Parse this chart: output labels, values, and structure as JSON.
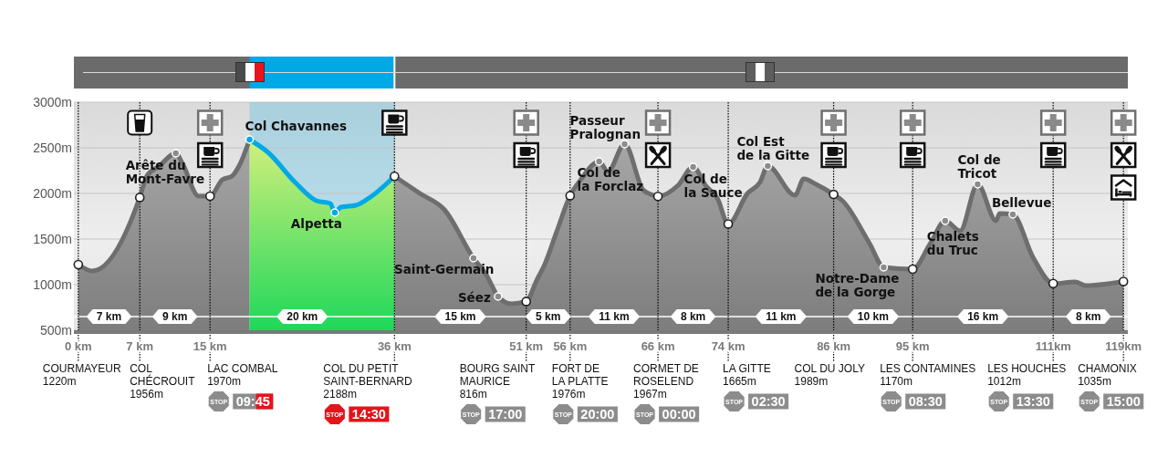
{
  "chart_data": {
    "type": "area",
    "xlim": [
      -0.5,
      119.5
    ],
    "ylim": [
      500,
      3000
    ],
    "xticks": [
      {
        "value": 0,
        "label": "0 km"
      },
      {
        "value": 7,
        "label": "7 km"
      },
      {
        "value": 15,
        "label": "15 km"
      },
      {
        "value": 36,
        "label": "36 km"
      },
      {
        "value": 51,
        "label": "51 km"
      },
      {
        "value": 56,
        "label": "56 km"
      },
      {
        "value": 66,
        "label": "66 km"
      },
      {
        "value": 74,
        "label": "74 km"
      },
      {
        "value": 86,
        "label": "86 km"
      },
      {
        "value": 95,
        "label": "95 km"
      },
      {
        "value": 111,
        "label": "111km"
      },
      {
        "value": 119,
        "label": "119km"
      }
    ],
    "yticks": [
      {
        "value": 500,
        "label": "500m"
      },
      {
        "value": 1000,
        "label": "1000m"
      },
      {
        "value": 1500,
        "label": "1500m"
      },
      {
        "value": 2000,
        "label": "2000m"
      },
      {
        "value": 2500,
        "label": "2500m"
      },
      {
        "value": 3000,
        "label": "3000m"
      }
    ],
    "grid": "y",
    "series": [
      {
        "color": "#6e6e6e",
        "x": [
          0,
          1.6,
          7,
          7.8,
          9.2,
          11.1,
          11.9,
          13.7,
          15,
          16.4,
          17.5,
          18.3,
          19.5,
          21.6,
          24.7,
          27.1,
          28.7,
          29.2,
          29.9,
          31.6,
          33.4,
          36,
          38.9,
          41.7,
          45,
          46.5,
          47.8,
          49.3,
          51,
          52.2,
          53.1,
          54.5,
          56,
          57.2,
          59.3,
          60.3,
          62.2,
          64.3,
          65.2,
          66,
          68.3,
          70,
          71.4,
          72.8,
          74,
          76.2,
          77.6,
          78.5,
          81.6,
          82.6,
          84,
          86,
          87,
          90.1,
          91.7,
          95,
          97,
          98.7,
          100.4,
          102.4,
          104.5,
          104.9,
          106.4,
          108.7,
          111,
          113.5,
          114.7,
          119
        ],
        "values": [
          1220,
          1150,
          1956,
          2190,
          2300,
          2440,
          2320,
          1970,
          1970,
          2150,
          2190,
          2300,
          2590,
          null,
          null,
          null,
          null,
          null,
          null,
          null,
          null,
          2188,
          2000,
          1820,
          1290,
          1100,
          870,
          790,
          816,
          1050,
          1220,
          1590,
          1976,
          2150,
          2350,
          2240,
          2540,
          2040,
          1990,
          1967,
          2090,
          2290,
          2090,
          1940,
          1665,
          2000,
          2120,
          2300,
          1980,
          2160,
          2100,
          1989,
          1920,
          1450,
          1190,
          1170,
          1450,
          1700,
          1590,
          2100,
          1700,
          1780,
          1770,
          1300,
          1012,
          1030,
          990,
          1035
        ]
      },
      {
        "type": "line",
        "color": "#00a8e6",
        "x": [
          19.5,
          21.6,
          24.7,
          27.1,
          28.7,
          29.2,
          29.9,
          31.6,
          33.4,
          36
        ],
        "values": [
          2590,
          2450,
          2120,
          1920,
          1890,
          1790,
          1850,
          1870,
          1970,
          2188
        ]
      },
      {
        "type": "scatter",
        "color": "#ffffff",
        "marker": "circle",
        "x": [
          0,
          7,
          15,
          36,
          51,
          56,
          66,
          74,
          86,
          95,
          111,
          119
        ],
        "values": [
          1220,
          1956,
          1970,
          2188,
          816,
          1976,
          1967,
          1665,
          1989,
          1170,
          1012,
          1035
        ]
      },
      {
        "type": "scatter",
        "color": "#8c8c8c",
        "marker": "circle",
        "x": [
          11.1,
          45,
          47.8,
          59.3,
          62.2,
          70,
          78.5,
          91.7,
          98.7,
          102.4,
          106.4
        ],
        "values": [
          2440,
          1290,
          870,
          2350,
          2540,
          2290,
          2300,
          1190,
          1700,
          2100,
          1770
        ]
      },
      {
        "type": "scatter",
        "color": "#00a8e6",
        "marker": "circle",
        "x": [
          19.5,
          29.2
        ],
        "values": [
          2590,
          1790
        ]
      }
    ],
    "bands": [
      {
        "axis": "x",
        "from": 19.5,
        "to": 36,
        "color": "#00a8e6"
      }
    ],
    "ref_lines": [
      {
        "axis": "x",
        "value": 0,
        "label": "COURMAYEUR\n1220m",
        "color": "#000000",
        "line_style": "dotted"
      },
      {
        "axis": "x",
        "value": 7,
        "label": "COL\nCHÉCROUIT\n1956m",
        "color": "#000000",
        "line_style": "dotted"
      },
      {
        "axis": "x",
        "value": 15,
        "label": "LAC COMBAL\n1970m",
        "color": "#000000",
        "line_style": "dotted"
      },
      {
        "axis": "x",
        "value": 36,
        "label": "COL DU PETIT\nSAINT-BERNARD\n2188m",
        "color": "#000000",
        "line_style": "dotted"
      },
      {
        "axis": "x",
        "value": 51,
        "label": "BOURG SAINT\nMAURICE\n816m",
        "color": "#000000",
        "line_style": "dotted"
      },
      {
        "axis": "x",
        "value": 56,
        "label": "FORT DE\nLA PLATTE\n1976m",
        "color": "#000000",
        "line_style": "dotted"
      },
      {
        "axis": "x",
        "value": 66,
        "label": "CORMET DE\nROSELEND\n1967m",
        "color": "#000000",
        "line_style": "dotted"
      },
      {
        "axis": "x",
        "value": 74,
        "label": "LA GITTE\n1665m",
        "color": "#000000",
        "line_style": "dotted"
      },
      {
        "axis": "x",
        "value": 86,
        "label": "COL DU JOLY\n1989m",
        "color": "#000000",
        "line_style": "dotted"
      },
      {
        "axis": "x",
        "value": 95,
        "label": "LES CONTAMINES\n1170m",
        "color": "#000000",
        "line_style": "dotted"
      },
      {
        "axis": "x",
        "value": 111,
        "label": "LES HOUCHES\n1012m",
        "color": "#000000",
        "line_style": "dotted"
      },
      {
        "axis": "x",
        "value": 119,
        "label": "CHAMONIX\n1035m",
        "color": "#000000",
        "line_style": "dotted"
      },
      {
        "axis": "y",
        "value": 650,
        "color": "#ffffff",
        "line_style": "solid"
      }
    ],
    "annotations": [
      {
        "text": "Arête du\nMont-Favre",
        "x": 11.1,
        "y": 2440
      },
      {
        "text": "Col Chavannes",
        "x": 19.5,
        "y": 2590
      },
      {
        "text": "Alpetta",
        "x": 29.2,
        "y": 1790
      },
      {
        "text": "Saint-Germain",
        "x": 45,
        "y": 1290
      },
      {
        "text": "Séez",
        "x": 47.8,
        "y": 870
      },
      {
        "text": "Col de\nla Forclaz",
        "x": 59.3,
        "y": 2350
      },
      {
        "text": "Passeur\nPralognan",
        "x": 62.2,
        "y": 2540
      },
      {
        "text": "Col de\nla Sauce",
        "x": 70,
        "y": 2290
      },
      {
        "text": "Col Est\nde la Gitte",
        "x": 78.5,
        "y": 2300
      },
      {
        "text": "Notre-Dame\nde la Gorge",
        "x": 91.7,
        "y": 1190
      },
      {
        "text": "Chalets\ndu Truc",
        "x": 98.7,
        "y": 1700
      },
      {
        "text": "Col de\nTricot",
        "x": 102.4,
        "y": 2100
      },
      {
        "text": "Bellevue",
        "x": 106.4,
        "y": 1770
      },
      {
        "text": "7 km",
        "x": 3.5,
        "y": 650
      },
      {
        "text": "9 km",
        "x": 11,
        "y": 650
      },
      {
        "text": "20 km",
        "x": 25.5,
        "y": 650
      },
      {
        "text": "15 km",
        "x": 43.5,
        "y": 650
      },
      {
        "text": "5 km",
        "x": 53.5,
        "y": 650
      },
      {
        "text": "11 km",
        "x": 61,
        "y": 650
      },
      {
        "text": "8 km",
        "x": 70,
        "y": 650
      },
      {
        "text": "11 km",
        "x": 80,
        "y": 650
      },
      {
        "text": "10 km",
        "x": 90.5,
        "y": 650
      },
      {
        "text": "16 km",
        "x": 103,
        "y": 650
      },
      {
        "text": "8 km",
        "x": 115,
        "y": 650
      },
      "STOP 09:45",
      "STOP 14:30",
      "STOP 17:00",
      "STOP 20:00",
      "STOP 00:00",
      "STOP 02:30",
      "STOP 08:30",
      "STOP 13:30",
      "STOP 15:00"
    ]
  }
}
